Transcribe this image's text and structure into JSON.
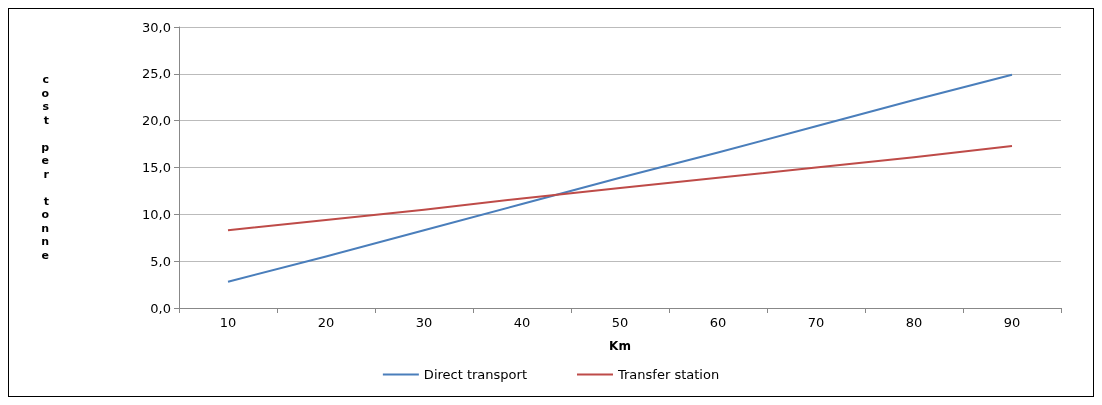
{
  "chart_data": {
    "type": "line",
    "xlabel": "Km",
    "ylabel": "cost per tonne",
    "categories": [
      "10",
      "20",
      "30",
      "40",
      "50",
      "60",
      "70",
      "80",
      "90"
    ],
    "series": [
      {
        "name": "Direct transport",
        "color": "#4a7ebb",
        "values": [
          2.8,
          5.5,
          8.3,
          11.1,
          13.9,
          16.6,
          19.4,
          22.2,
          24.9
        ]
      },
      {
        "name": "Transfer station",
        "color": "#be4b48",
        "values": [
          8.3,
          9.4,
          10.5,
          11.7,
          12.8,
          13.9,
          15.0,
          16.1,
          17.3
        ]
      }
    ],
    "ylim": [
      0,
      30
    ],
    "yticks": [
      {
        "value": 0,
        "label": "0,0"
      },
      {
        "value": 5,
        "label": "5,0"
      },
      {
        "value": 10,
        "label": "10,0"
      },
      {
        "value": 15,
        "label": "15,0"
      },
      {
        "value": 20,
        "label": "20,0"
      },
      {
        "value": 25,
        "label": "25,0"
      },
      {
        "value": 30,
        "label": "30,0"
      }
    ],
    "grid": "y",
    "legend": "bottom",
    "marker": "none",
    "line_style": "solid"
  }
}
